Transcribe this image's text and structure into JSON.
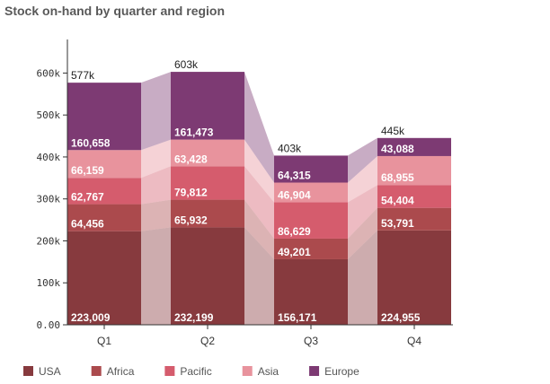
{
  "chart_data": {
    "type": "bar",
    "subtype": "stacked-with-connecting-bands",
    "title": "Stock on-hand by quarter and region",
    "categories": [
      "Q1",
      "Q2",
      "Q3",
      "Q4"
    ],
    "series": [
      {
        "name": "USA",
        "color": "#873a3e",
        "values": [
          223009,
          232199,
          156171,
          224955
        ]
      },
      {
        "name": "Africa",
        "color": "#ab4a4d",
        "values": [
          64456,
          65932,
          49201,
          53791
        ]
      },
      {
        "name": "Pacific",
        "color": "#d55c6d",
        "values": [
          62767,
          79812,
          86629,
          54404
        ]
      },
      {
        "name": "Asia",
        "color": "#e8939d",
        "values": [
          66159,
          63428,
          46904,
          68955
        ]
      },
      {
        "name": "Europe",
        "color": "#7d3a73",
        "values": [
          160658,
          161473,
          64315,
          43088
        ]
      }
    ],
    "totals": [
      "577k",
      "603k",
      "403k",
      "445k"
    ],
    "ylim": [
      0,
      680000
    ],
    "yticks": [
      {
        "value": 0,
        "label": "0.00"
      },
      {
        "value": 100000,
        "label": "100k"
      },
      {
        "value": 200000,
        "label": "200k"
      },
      {
        "value": 300000,
        "label": "300k"
      },
      {
        "value": 400000,
        "label": "400k"
      },
      {
        "value": 500000,
        "label": "500k"
      },
      {
        "value": 600000,
        "label": "600k"
      }
    ],
    "legend_position": "bottom-left",
    "grid": false
  }
}
